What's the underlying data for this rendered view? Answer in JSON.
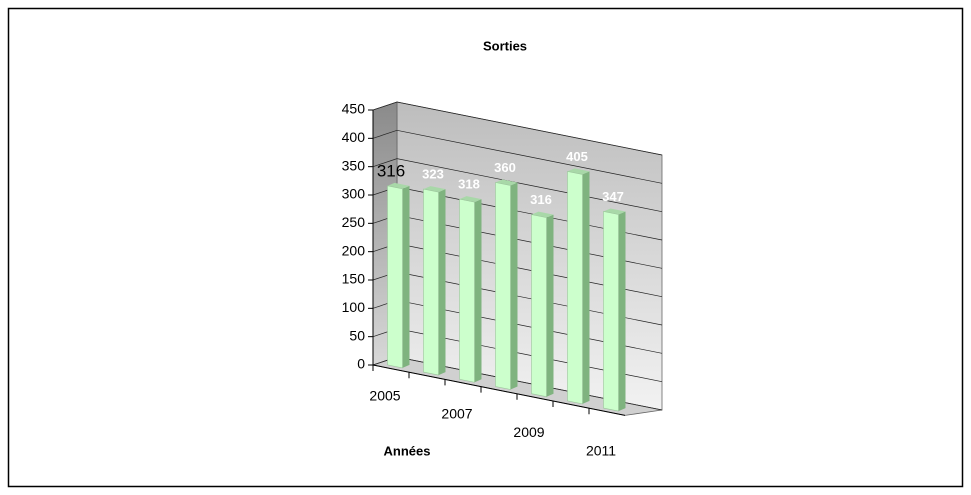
{
  "chart_data": {
    "type": "bar3d",
    "title": "Sorties",
    "x_label": "Années",
    "categories": [
      "2005",
      null,
      "2007",
      null,
      "2009",
      null,
      "2011"
    ],
    "values": [
      316,
      323,
      318,
      360,
      316,
      405,
      347
    ],
    "color": "#ccffcc",
    "ylim": [
      0,
      450
    ],
    "yticks": [
      0,
      50,
      100,
      150,
      200,
      250,
      300,
      350,
      400,
      450
    ],
    "grid": true
  }
}
